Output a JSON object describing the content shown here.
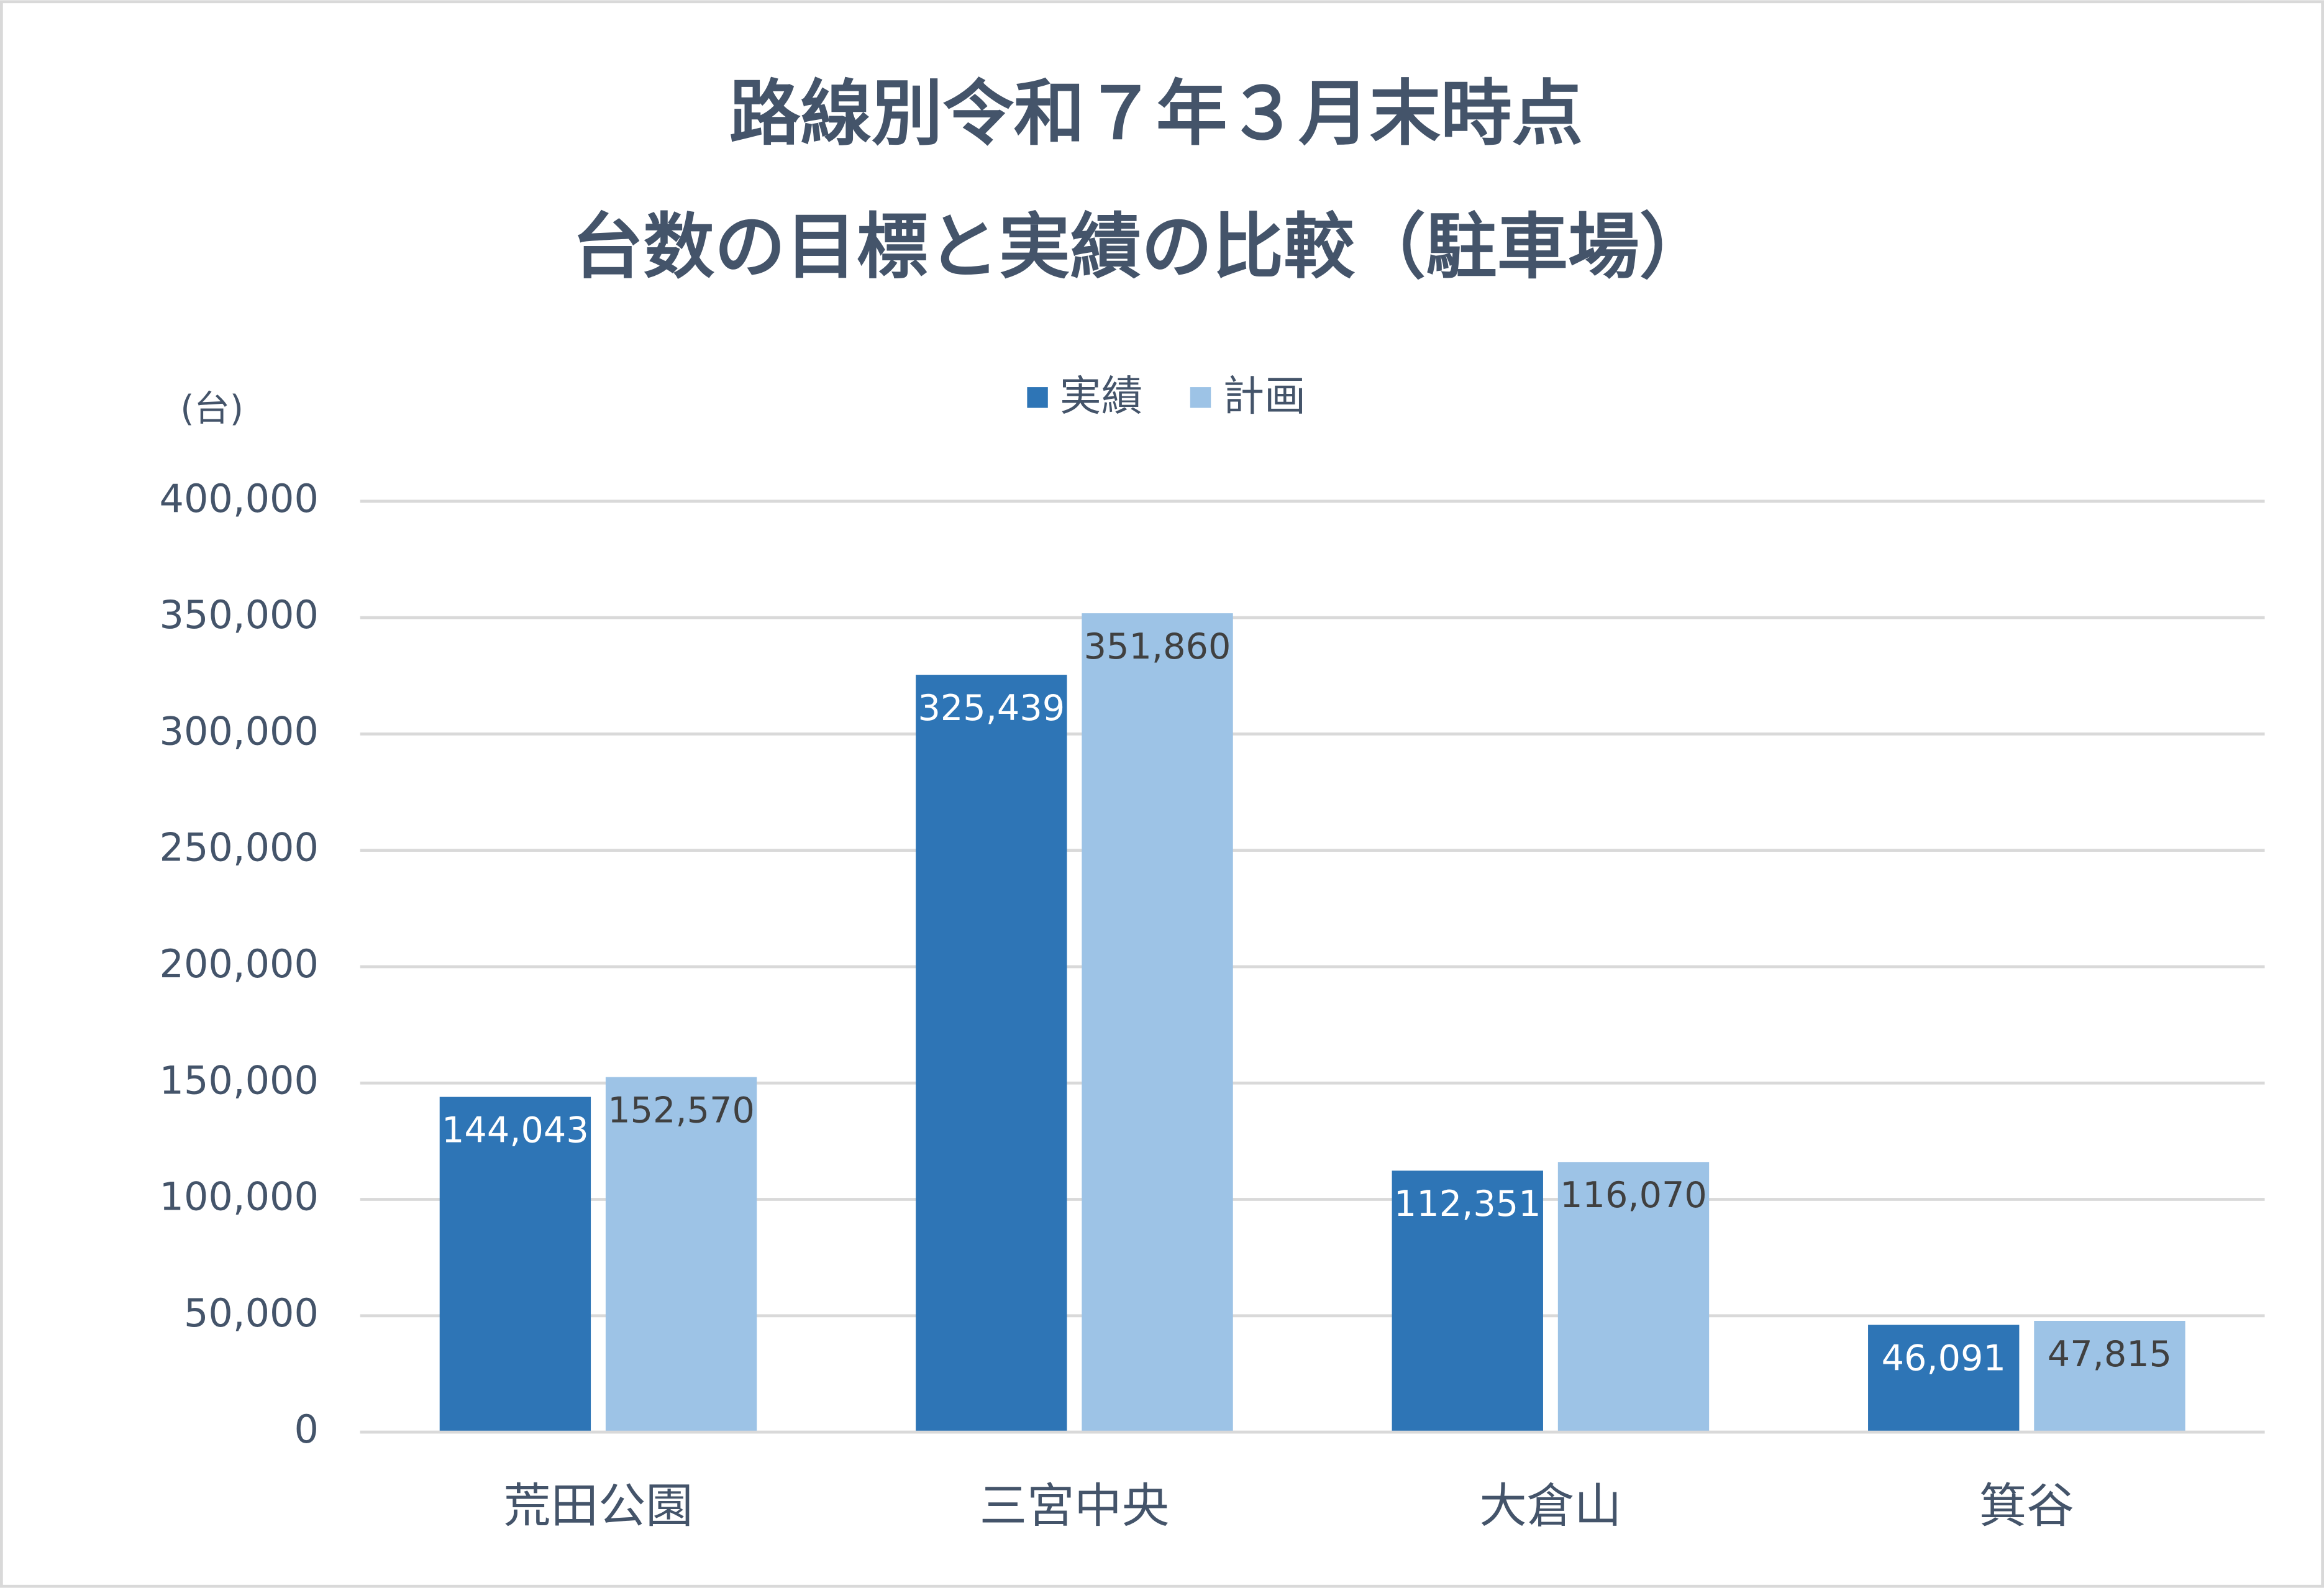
{
  "chart_data": {
    "type": "bar",
    "title": [
      "路線別令和７年３月末時点",
      "台数の目標と実績の比較（駐車場）"
    ],
    "y_label": "(台)",
    "categories": [
      "荒田公園",
      "三宮中央",
      "大倉山",
      "箕谷"
    ],
    "series": [
      {
        "name": "実績",
        "color": "#2e75b6",
        "values": [
          144043,
          325439,
          112351,
          46091
        ],
        "value_labels": [
          "144,043",
          "325,439",
          "112,351",
          "46,091"
        ]
      },
      {
        "name": "計画",
        "color": "#9dc3e6",
        "values": [
          152570,
          351860,
          116070,
          47815
        ],
        "value_labels": [
          "152,570",
          "351,860",
          "116,070",
          "47,815"
        ]
      }
    ],
    "ylim": [
      0,
      400000
    ],
    "yticks": [
      0,
      {
        "value": 50000,
        "label": "50,000"
      },
      {
        "value": 100000,
        "label": "100,000"
      },
      {
        "value": 150000,
        "label": "150,000"
      },
      {
        "value": 200000,
        "label": "200,000"
      },
      {
        "value": 250000,
        "label": "250,000"
      },
      {
        "value": 300000,
        "label": "300,000"
      },
      {
        "value": 350000,
        "label": "350,000"
      },
      {
        "value": 400000,
        "label": "400,000"
      }
    ],
    "grid": true,
    "legend": "top"
  }
}
